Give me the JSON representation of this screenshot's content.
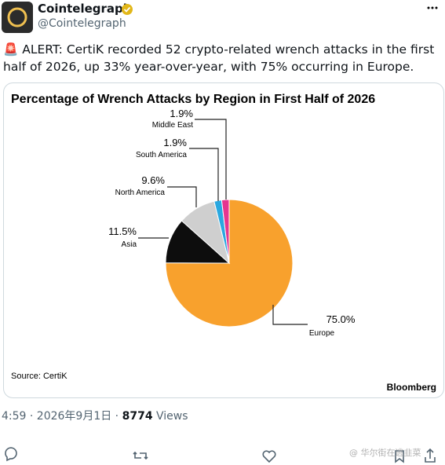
{
  "header": {
    "name": "Cointelegraph",
    "handle": "@Cointelegraph"
  },
  "tweet": {
    "text": "🚨 ALERT: CertiK recorded 52 crypto-related wrench attacks in the first half of 2026, up 33% year-over-year, with 75% occurring in Europe.",
    "timestamp": "4:59 · 2026年9月1日 ·",
    "views": "8774",
    "views_label": "Views"
  },
  "chart_data": {
    "type": "pie",
    "title": "Percentage of Wrench Attacks by Region in First Half of 2026",
    "categories": [
      "Europe",
      "Asia",
      "North America",
      "South America",
      "Middle East"
    ],
    "values": [
      75.0,
      11.5,
      9.6,
      1.9,
      1.9
    ],
    "value_labels": [
      "75.0%",
      "11.5%",
      "9.6%",
      "1.9%",
      "1.9%"
    ],
    "colors": [
      "#f8a12d",
      "#0d0d0d",
      "#cfcfcf",
      "#2aa8e0",
      "#e5368f"
    ],
    "source": "Source: CertiK",
    "brand": "Bloomberg"
  },
  "watermark": "@ 华尔街在逃韭菜"
}
